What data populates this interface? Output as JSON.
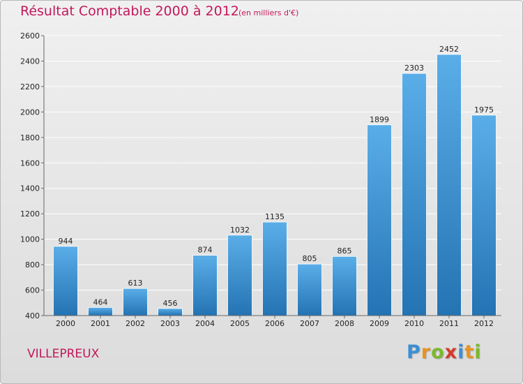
{
  "header": {
    "title": "Résultat Comptable 2000 à 2012",
    "subtitle": "(en milliers d'€)"
  },
  "footer": {
    "commune": "VILLEPREUX",
    "logo_letters": [
      "P",
      "r",
      "o",
      "x",
      "i",
      "t",
      "i"
    ],
    "logo_colors": [
      "#3b8fd4",
      "#e8931e",
      "#7cb82f",
      "#d63b2a",
      "#3b8fd4",
      "#e8931e",
      "#7cb82f"
    ]
  },
  "colors": {
    "bar_top": "#5aaee8",
    "bar_bottom": "#2473b3",
    "grid": "#ffffff",
    "axis": "#666666",
    "title": "#c2185b"
  },
  "chart_data": {
    "type": "bar",
    "title": "Résultat Comptable 2000 à 2012",
    "subtitle": "(en milliers d'€)",
    "xlabel": "",
    "ylabel": "",
    "categories": [
      "2000",
      "2001",
      "2002",
      "2003",
      "2004",
      "2005",
      "2006",
      "2007",
      "2008",
      "2009",
      "2010",
      "2011",
      "2012"
    ],
    "values": [
      944,
      464,
      613,
      456,
      874,
      1032,
      1135,
      805,
      865,
      1899,
      2303,
      2452,
      1975
    ],
    "ylim": [
      400,
      2600
    ],
    "yticks": [
      400,
      600,
      800,
      1000,
      1200,
      1400,
      1600,
      1800,
      2000,
      2200,
      2400,
      2600
    ],
    "grid": true,
    "data_labels": true
  }
}
